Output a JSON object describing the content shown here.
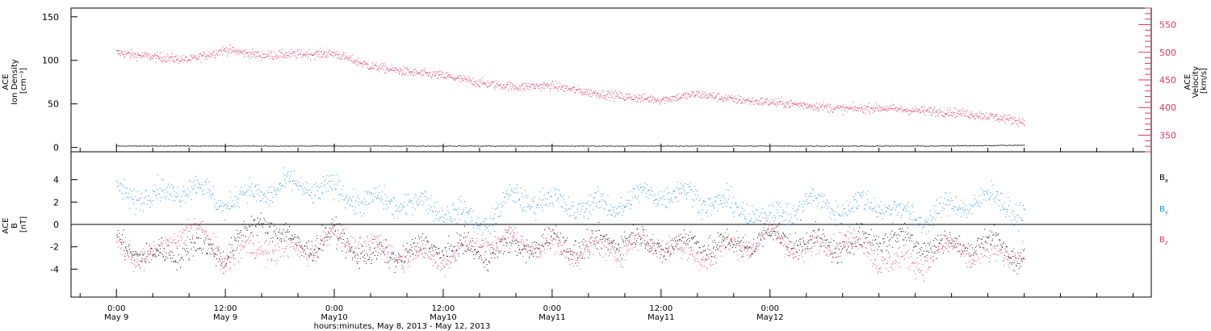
{
  "chart_data": [
    {
      "type": "scatter",
      "panel": "top",
      "ylabel_lines": [
        "ACE",
        "Ion Density",
        "[cm⁻³]"
      ],
      "ylim": [
        -5,
        160
      ],
      "yticks": [
        0,
        50,
        100,
        150
      ],
      "y2label_lines": [
        "ACE",
        "Velocity",
        "[km/s]"
      ],
      "y2lim": [
        320,
        580
      ],
      "y2ticks": [
        350,
        400,
        450,
        500,
        550
      ],
      "series": [
        {
          "axis": "right",
          "color": "#e8335f",
          "x_hours": [
            0,
            4,
            8,
            12,
            16,
            20,
            24,
            28,
            32,
            36,
            40,
            44,
            48,
            52,
            56,
            60,
            64,
            68,
            72,
            76,
            80,
            84,
            88,
            92,
            96,
            100
          ],
          "values": [
            500,
            492,
            487,
            505,
            495,
            497,
            498,
            475,
            465,
            458,
            445,
            438,
            440,
            428,
            420,
            415,
            425,
            415,
            410,
            405,
            398,
            400,
            395,
            392,
            385,
            375
          ]
        },
        {
          "axis": "left",
          "color": "#000000",
          "x_hours": [
            0,
            10,
            20,
            30,
            40,
            50,
            60,
            70,
            80,
            90,
            100
          ],
          "values": [
            2,
            2,
            2,
            2,
            2,
            2,
            2,
            2,
            2,
            2,
            3
          ]
        }
      ]
    },
    {
      "type": "scatter",
      "panel": "bottom",
      "ylabel_lines": [
        "ACE",
        "B",
        "[nT]"
      ],
      "ylim": [
        -6.5,
        6.5
      ],
      "yticks": [
        -4,
        -2,
        0,
        2,
        4
      ],
      "legend": [
        "Bx",
        "By",
        "Bz"
      ],
      "series": [
        {
          "name": "Bx",
          "color": "#000000",
          "x_hours": [
            0,
            4,
            8,
            12,
            16,
            20,
            24,
            28,
            32,
            36,
            40,
            44,
            48,
            52,
            56,
            60,
            64,
            68,
            72,
            76,
            80,
            84,
            88,
            92,
            96,
            100
          ],
          "values": [
            -1.5,
            -3,
            -2,
            -2.5,
            0.5,
            -2,
            -1,
            -3,
            -2.5,
            -2,
            -2.5,
            -2,
            -1.5,
            -2,
            -1,
            -2,
            -1.5,
            -2,
            -1,
            -1.5,
            -2,
            -1,
            -1.5,
            -2,
            -1.5,
            -3
          ]
        },
        {
          "name": "By",
          "color": "#1e8ce8",
          "x_hours": [
            0,
            4,
            8,
            12,
            16,
            20,
            24,
            28,
            32,
            36,
            40,
            44,
            48,
            52,
            56,
            60,
            64,
            68,
            72,
            76,
            80,
            84,
            88,
            92,
            96,
            100
          ],
          "values": [
            3,
            2.5,
            3.5,
            2,
            3,
            3.5,
            3,
            2,
            2,
            1.5,
            0,
            2.5,
            2,
            1.5,
            2,
            3,
            2.5,
            1.5,
            0.5,
            2,
            1.5,
            2,
            0.5,
            1.5,
            2.5,
            1
          ]
        },
        {
          "name": "Bz",
          "color": "#e8335f",
          "x_hours": [
            0,
            4,
            8,
            12,
            16,
            20,
            24,
            28,
            32,
            36,
            40,
            44,
            48,
            52,
            56,
            60,
            64,
            68,
            72,
            76,
            80,
            84,
            88,
            92,
            96,
            100
          ],
          "values": [
            -2,
            -3,
            0,
            -3,
            -2,
            -2.5,
            -1,
            -2,
            -2.5,
            -3,
            -1.5,
            -1.5,
            -2,
            -2.5,
            -2,
            -1.5,
            -3,
            -2,
            -1,
            -2.5,
            -1,
            -3,
            -3.5,
            -2,
            -3,
            -2
          ]
        }
      ]
    }
  ],
  "xaxis": {
    "range_hours": [
      -5,
      114
    ],
    "ticks": [
      {
        "hour": 0,
        "time": "0:00",
        "day": "May 9"
      },
      {
        "hour": 12,
        "time": "12:00",
        "day": "May 9"
      },
      {
        "hour": 24,
        "time": "0:00",
        "day": "May10"
      },
      {
        "hour": 36,
        "time": "12:00",
        "day": "May10"
      },
      {
        "hour": 48,
        "time": "0:00",
        "day": "May11"
      },
      {
        "hour": 60,
        "time": "12:00",
        "day": "May11"
      },
      {
        "hour": 72,
        "time": "0:00",
        "day": "May12"
      }
    ],
    "label": "hours:minutes, May  8, 2013 - May 12, 2013"
  },
  "legend_labels": {
    "bx": "B",
    "bx_sub": "x",
    "by": "B",
    "by_sub": "y",
    "bz": "B",
    "bz_sub": "z"
  }
}
